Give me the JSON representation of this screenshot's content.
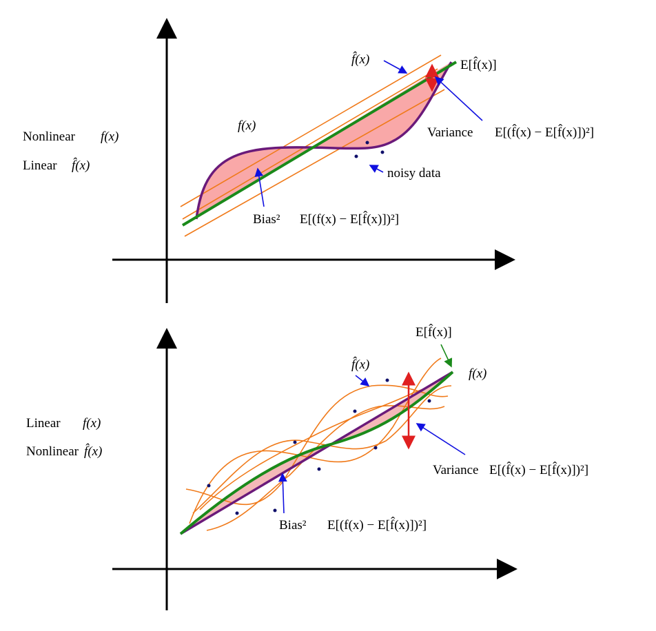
{
  "panels": [
    {
      "model_lines": [
        {
          "label": "Nonlinear",
          "function": "f(x)"
        },
        {
          "label": "Linear",
          "function": "f̂(x)"
        }
      ],
      "annotations": {
        "f": "f(x)",
        "f_hat": "f̂(x)",
        "expected": "E[f̂(x)]",
        "variance": "Variance",
        "variance_formula": "E[(f̂(x) − E[f̂(x)])²]",
        "noisy": "noisy data",
        "bias": "Bias²",
        "bias_formula": "E[(f(x) − E[f̂(x)])²]"
      }
    },
    {
      "model_lines": [
        {
          "label": "Linear",
          "function": "f(x)"
        },
        {
          "label": "Nonlinear",
          "function": "f̂(x)"
        }
      ],
      "annotations": {
        "expected": "E[f̂(x)]",
        "f_hat": "f̂(x)",
        "f": "f(x)",
        "variance": "Variance",
        "variance_formula": "E[(f̂(x) − E[f̂(x)])²]",
        "bias": "Bias²",
        "bias_formula": "E[(f(x) − E[f̂(x)])²]"
      }
    }
  ]
}
